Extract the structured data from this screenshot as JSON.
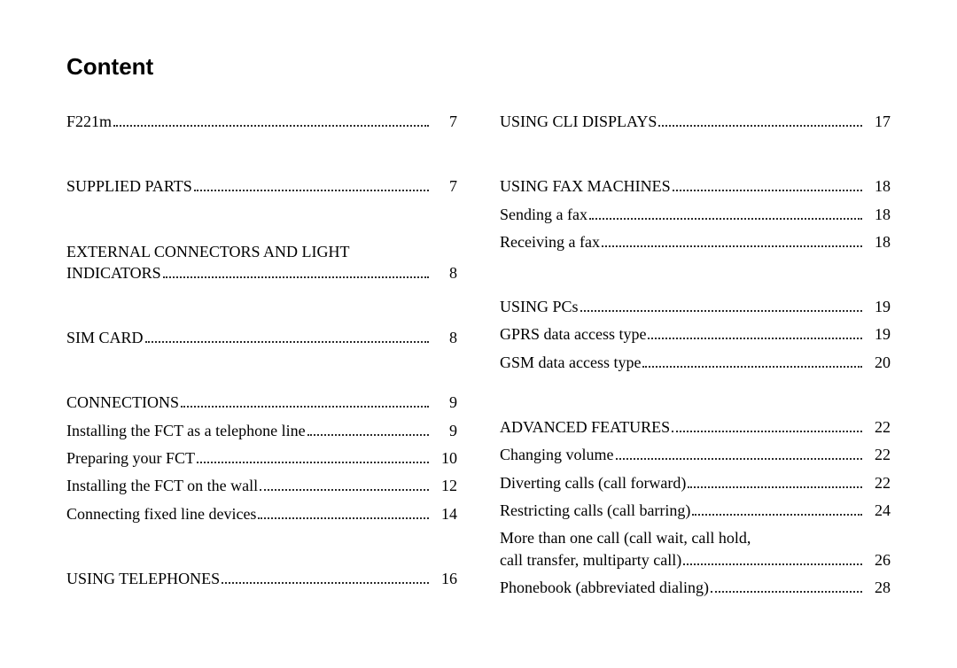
{
  "title": "Content",
  "left": [
    {
      "label": "F221m",
      "page": "7"
    },
    {
      "gap": "lg"
    },
    {
      "label": "SUPPLIED PARTS",
      "page": "7"
    },
    {
      "gap": "lg"
    },
    {
      "cont": "EXTERNAL CONNECTORS AND LIGHT"
    },
    {
      "label": "INDICATORS",
      "page": "8"
    },
    {
      "gap": "lg"
    },
    {
      "label": "SIM CARD",
      "page": "8"
    },
    {
      "gap": "lg"
    },
    {
      "label": "CONNECTIONS",
      "page": "9"
    },
    {
      "label": "Installing the FCT as a telephone line",
      "page": "9"
    },
    {
      "label": "Preparing your FCT",
      "page": "10"
    },
    {
      "label": "Installing the FCT on the wall",
      "page": "12"
    },
    {
      "label": "Connecting fixed line devices",
      "page": "14"
    },
    {
      "gap": "lg"
    },
    {
      "label": "USING TELEPHONES",
      "page": "16"
    }
  ],
  "right": [
    {
      "label": "USING CLI DISPLAYS",
      "page": "17"
    },
    {
      "gap": "lg"
    },
    {
      "label": "USING FAX MACHINES",
      "page": "18"
    },
    {
      "label": "Sending a fax",
      "page": "18"
    },
    {
      "label": "Receiving a fax",
      "page": "18"
    },
    {
      "gap": "lg"
    },
    {
      "label": "USING PCs",
      "page": "19"
    },
    {
      "label": "GPRS data access type",
      "page": "19"
    },
    {
      "label": "GSM data access type",
      "page": "20"
    },
    {
      "gap": "lg"
    },
    {
      "label": "ADVANCED FEATURES",
      "page": "22"
    },
    {
      "label": "Changing volume",
      "page": "22"
    },
    {
      "label": "Diverting calls (call forward)",
      "page": "22"
    },
    {
      "label": "Restricting calls (call barring)",
      "page": "24"
    },
    {
      "cont": "More than one call (call wait, call hold,"
    },
    {
      "label": "call transfer, multiparty call)",
      "page": "26"
    },
    {
      "label": "Phonebook (abbreviated dialing)",
      "page": "28"
    }
  ]
}
